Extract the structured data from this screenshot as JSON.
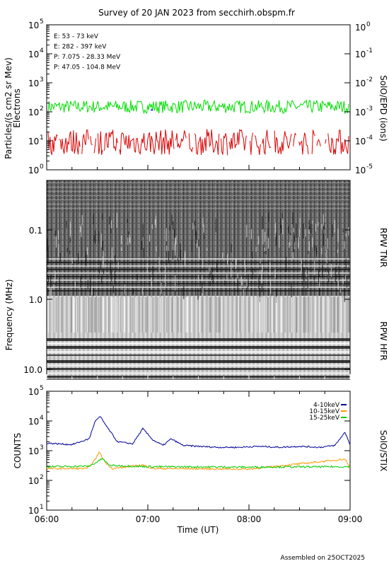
{
  "title": "Survey of 20 JAN 2023 from secchirh.obspm.fr",
  "footer": "Assembled on 25OCT2025",
  "colors": {
    "green": "#00dd00",
    "red": "#dd0000",
    "black": "#000000",
    "blue": "#0000cc",
    "orange": "#ff9900",
    "navy": "#000099"
  },
  "chart_data": [
    {
      "type": "line",
      "name": "epd",
      "ylabel": "Particles/(s cm2 sr Mev)",
      "ylabel2": "Electrons",
      "right_label": "SolO/EPD (ions)",
      "y_log": true,
      "ylim_exp": [
        0,
        5
      ],
      "y_ticks": [
        "10",
        "10",
        "10",
        "10",
        "10",
        "10"
      ],
      "y_tick_exps": [
        "0",
        "1",
        "2",
        "3",
        "4",
        "5"
      ],
      "y2_ticks": [
        "10",
        "10",
        "10",
        "10",
        "10"
      ],
      "y2_tick_exps": [
        "-5",
        "-4",
        "-3",
        "-2",
        "-1"
      ],
      "y2_top": "10",
      "y2_top_exp": "0",
      "legend": [
        {
          "label": "E: 53 - 73 keV",
          "color": "#00dd00"
        },
        {
          "label": "E: 282 - 397 keV",
          "color": "#dd0000"
        },
        {
          "label": "P: 7.075 - 28.33 MeV",
          "color": "#000000"
        },
        {
          "label": "P: 47.05 - 104.8 MeV",
          "color": "#0000cc"
        }
      ],
      "series": [
        {
          "name": "E: 53 - 73 keV",
          "level": 150,
          "noise": 0.45
        },
        {
          "name": "E: 282 - 397 keV",
          "level": 9,
          "noise": 0.9
        }
      ]
    },
    {
      "type": "heatmap",
      "name": "rpw",
      "ylabel": "Frequency (MHz)",
      "y_ticks": [
        "0.1",
        "1.0",
        "10.0"
      ],
      "label_tnr": "RPW TNR",
      "label_hfr": "RPW HFR"
    },
    {
      "type": "line",
      "name": "stix",
      "ylabel": "COUNTS",
      "right_label": "SolO/STIX",
      "y_log": true,
      "ylim_exp": [
        1,
        5
      ],
      "y_ticks": [
        "10",
        "10",
        "10",
        "10",
        "10"
      ],
      "y_tick_exps": [
        "1",
        "2",
        "3",
        "4",
        "5"
      ],
      "xlabel": "Time (UT)",
      "x_ticks": [
        "06:00",
        "07:00",
        "08:00",
        "09:00"
      ],
      "legend": [
        {
          "label": "4-10keV",
          "color": "#000099"
        },
        {
          "label": "10-15keV",
          "color": "#ff9900"
        },
        {
          "label": "15-25keV",
          "color": "#00cc00"
        }
      ],
      "series": [
        {
          "name": "4-10keV",
          "color": "#000099",
          "x_hours": [
            6.0,
            6.25,
            6.42,
            6.48,
            6.53,
            6.6,
            6.7,
            6.85,
            6.95,
            7.05,
            7.15,
            7.23,
            7.35,
            7.5,
            7.7,
            7.9,
            8.1,
            8.3,
            8.5,
            8.7,
            8.85,
            8.95,
            9.0
          ],
          "values": [
            1800,
            1600,
            2500,
            10000,
            14000,
            6000,
            2000,
            1700,
            5500,
            2300,
            1500,
            2500,
            1500,
            1400,
            1300,
            1300,
            1400,
            1300,
            1400,
            1300,
            1500,
            4200,
            1600
          ]
        },
        {
          "name": "10-15keV",
          "color": "#ff9900",
          "x_hours": [
            6.0,
            6.4,
            6.47,
            6.52,
            6.58,
            6.65,
            6.95,
            7.05,
            7.2,
            8.0,
            8.95,
            9.0
          ],
          "values": [
            250,
            250,
            450,
            900,
            400,
            250,
            330,
            250,
            250,
            240,
            520,
            260
          ]
        },
        {
          "name": "15-25keV",
          "color": "#00cc00",
          "x_hours": [
            6.0,
            6.42,
            6.5,
            6.55,
            6.62,
            7.0,
            8.0,
            9.0
          ],
          "values": [
            290,
            300,
            420,
            550,
            320,
            290,
            280,
            290
          ]
        }
      ]
    }
  ]
}
